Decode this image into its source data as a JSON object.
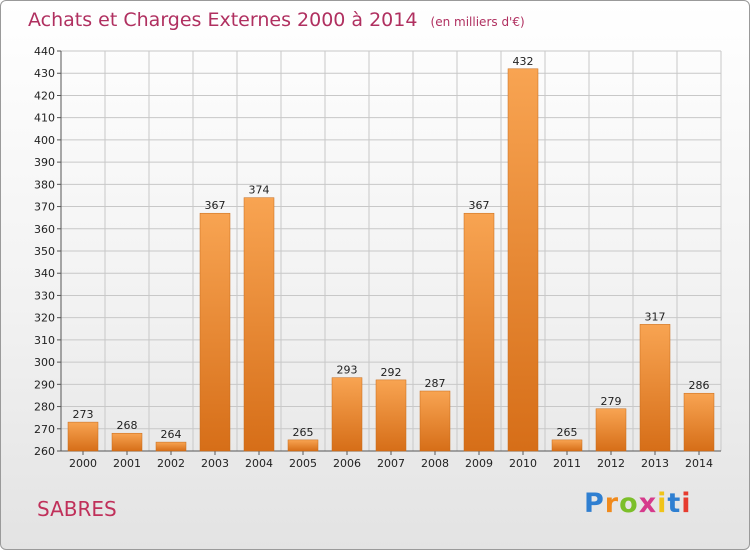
{
  "header": {
    "title": "Achats et Charges Externes 2000 à 2014",
    "subtitle": "(en milliers d'€)"
  },
  "footer": {
    "place": "SABRES",
    "logo": [
      "P",
      "r",
      "o",
      "x",
      "i",
      "t",
      "i"
    ],
    "logo_colors": [
      "#2f7fd1",
      "#f08a1c",
      "#7cbf2a",
      "#d63a8c",
      "#f0c419",
      "#2f7fd1",
      "#e63b2e"
    ]
  },
  "colors": {
    "bar_light": "#f8a452",
    "bar_dark": "#d66e18",
    "title": "#b03060",
    "grid": "#c8c8c8"
  },
  "chart_data": {
    "type": "bar",
    "title": "Achats et Charges Externes 2000 à 2014",
    "subtitle": "(en milliers d'€)",
    "categories": [
      "2000",
      "2001",
      "2002",
      "2003",
      "2004",
      "2005",
      "2006",
      "2007",
      "2008",
      "2009",
      "2010",
      "2011",
      "2012",
      "2013",
      "2014"
    ],
    "values": [
      273,
      268,
      264,
      367,
      374,
      265,
      293,
      292,
      287,
      367,
      432,
      265,
      279,
      317,
      286
    ],
    "ylim": [
      260,
      440
    ],
    "ytick_step": 10,
    "grid": true,
    "xlabel": "",
    "ylabel": ""
  }
}
